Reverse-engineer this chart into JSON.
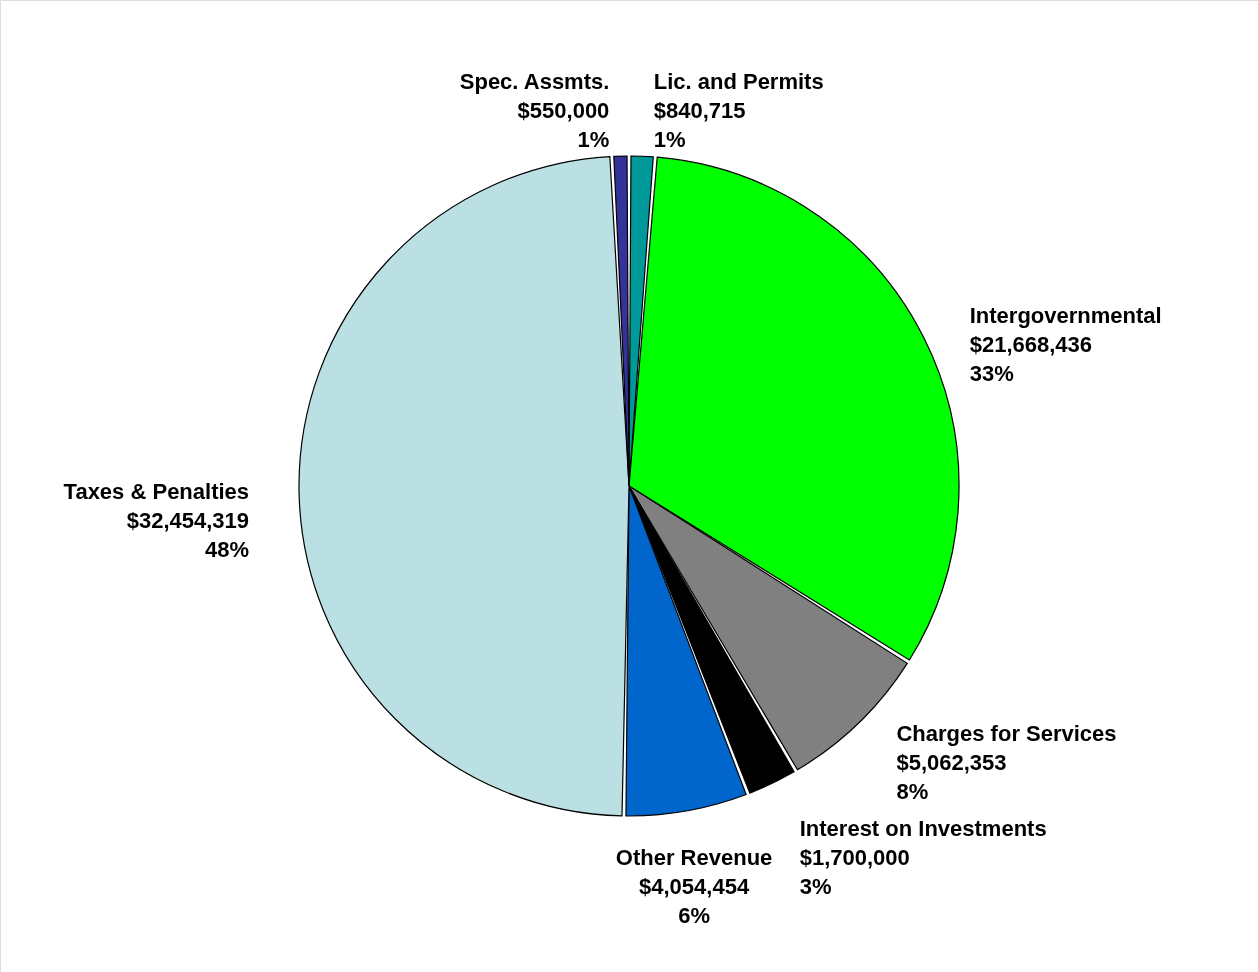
{
  "chart_data": {
    "type": "pie",
    "categories": [
      "Lic. and Permits",
      "Intergovernmental",
      "Charges for Services",
      "Interest on Investments",
      "Other Revenue",
      "Taxes & Penalties",
      "Spec. Assmts."
    ],
    "values": [
      840715,
      21668436,
      5062353,
      1700000,
      4054454,
      32454319,
      550000
    ],
    "colors": [
      "#009999",
      "#00ff00",
      "#808080",
      "#000000",
      "#0066cc",
      "#bbe0e3",
      "#333399"
    ],
    "value_labels": [
      "$840,715\n1%",
      "$21,668,436\n33%",
      "$5,062,353\n8%",
      "$1,700,000\n3%",
      "$4,054,454\n6%",
      "$32,454,319\n48%",
      "$550,000\n1%"
    ]
  }
}
